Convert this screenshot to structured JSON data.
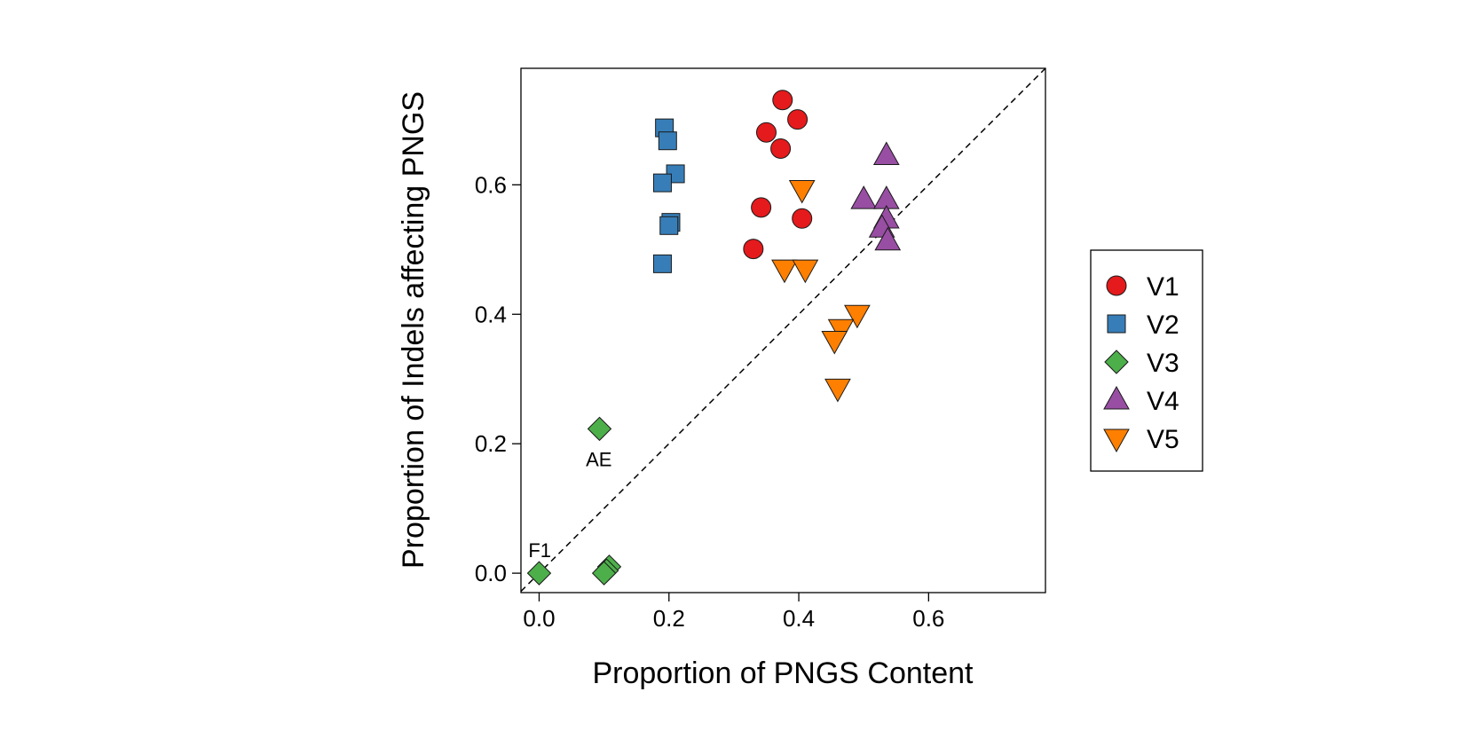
{
  "chart_data": {
    "type": "scatter",
    "title": "",
    "xlabel": "Proportion of PNGS Content",
    "ylabel": "Proportion of Indels affecting PNGS",
    "xlim": [
      -0.028,
      0.78
    ],
    "ylim": [
      -0.03,
      0.78
    ],
    "xticks": [
      0.0,
      0.2,
      0.4,
      0.6
    ],
    "yticks": [
      0.0,
      0.2,
      0.4,
      0.6
    ],
    "xtick_labels": [
      "0.0",
      "0.2",
      "0.4",
      "0.6"
    ],
    "ytick_labels": [
      "0.0",
      "0.2",
      "0.4",
      "0.6"
    ],
    "grid": false,
    "legend": "right",
    "reference_line": {
      "type": "identity",
      "style": "dashed"
    },
    "series": [
      {
        "name": "V1",
        "marker": "circle",
        "color": "#e41a1c",
        "x": [
          0.375,
          0.398,
          0.35,
          0.372,
          0.342,
          0.405,
          0.33
        ],
        "y": [
          0.731,
          0.701,
          0.681,
          0.656,
          0.565,
          0.548,
          0.501
        ]
      },
      {
        "name": "V2",
        "marker": "square",
        "color": "#377eb8",
        "x": [
          0.193,
          0.198,
          0.21,
          0.19,
          0.203,
          0.2,
          0.19
        ],
        "y": [
          0.688,
          0.668,
          0.617,
          0.603,
          0.542,
          0.537,
          0.478
        ]
      },
      {
        "name": "V3",
        "marker": "diamond",
        "color": "#4daf4a",
        "x": [
          0.093,
          0.0,
          0.108,
          0.104,
          0.1
        ],
        "y": [
          0.223,
          0.0,
          0.01,
          0.004,
          0.0
        ]
      },
      {
        "name": "V4",
        "marker": "triangle-up",
        "color": "#984ea3",
        "x": [
          0.535,
          0.5,
          0.535,
          0.535,
          0.528,
          0.537
        ],
        "y": [
          0.645,
          0.577,
          0.577,
          0.547,
          0.533,
          0.513
        ]
      },
      {
        "name": "V5",
        "marker": "triangle-down",
        "color": "#ff7f00",
        "x": [
          0.405,
          0.378,
          0.41,
          0.49,
          0.465,
          0.455,
          0.46
        ],
        "y": [
          0.593,
          0.47,
          0.47,
          0.4,
          0.378,
          0.36,
          0.286
        ]
      }
    ],
    "annotations": [
      {
        "text": "AE",
        "x": 0.092,
        "y": 0.176
      },
      {
        "text": "F1",
        "x": 0.001,
        "y": 0.036
      }
    ]
  }
}
